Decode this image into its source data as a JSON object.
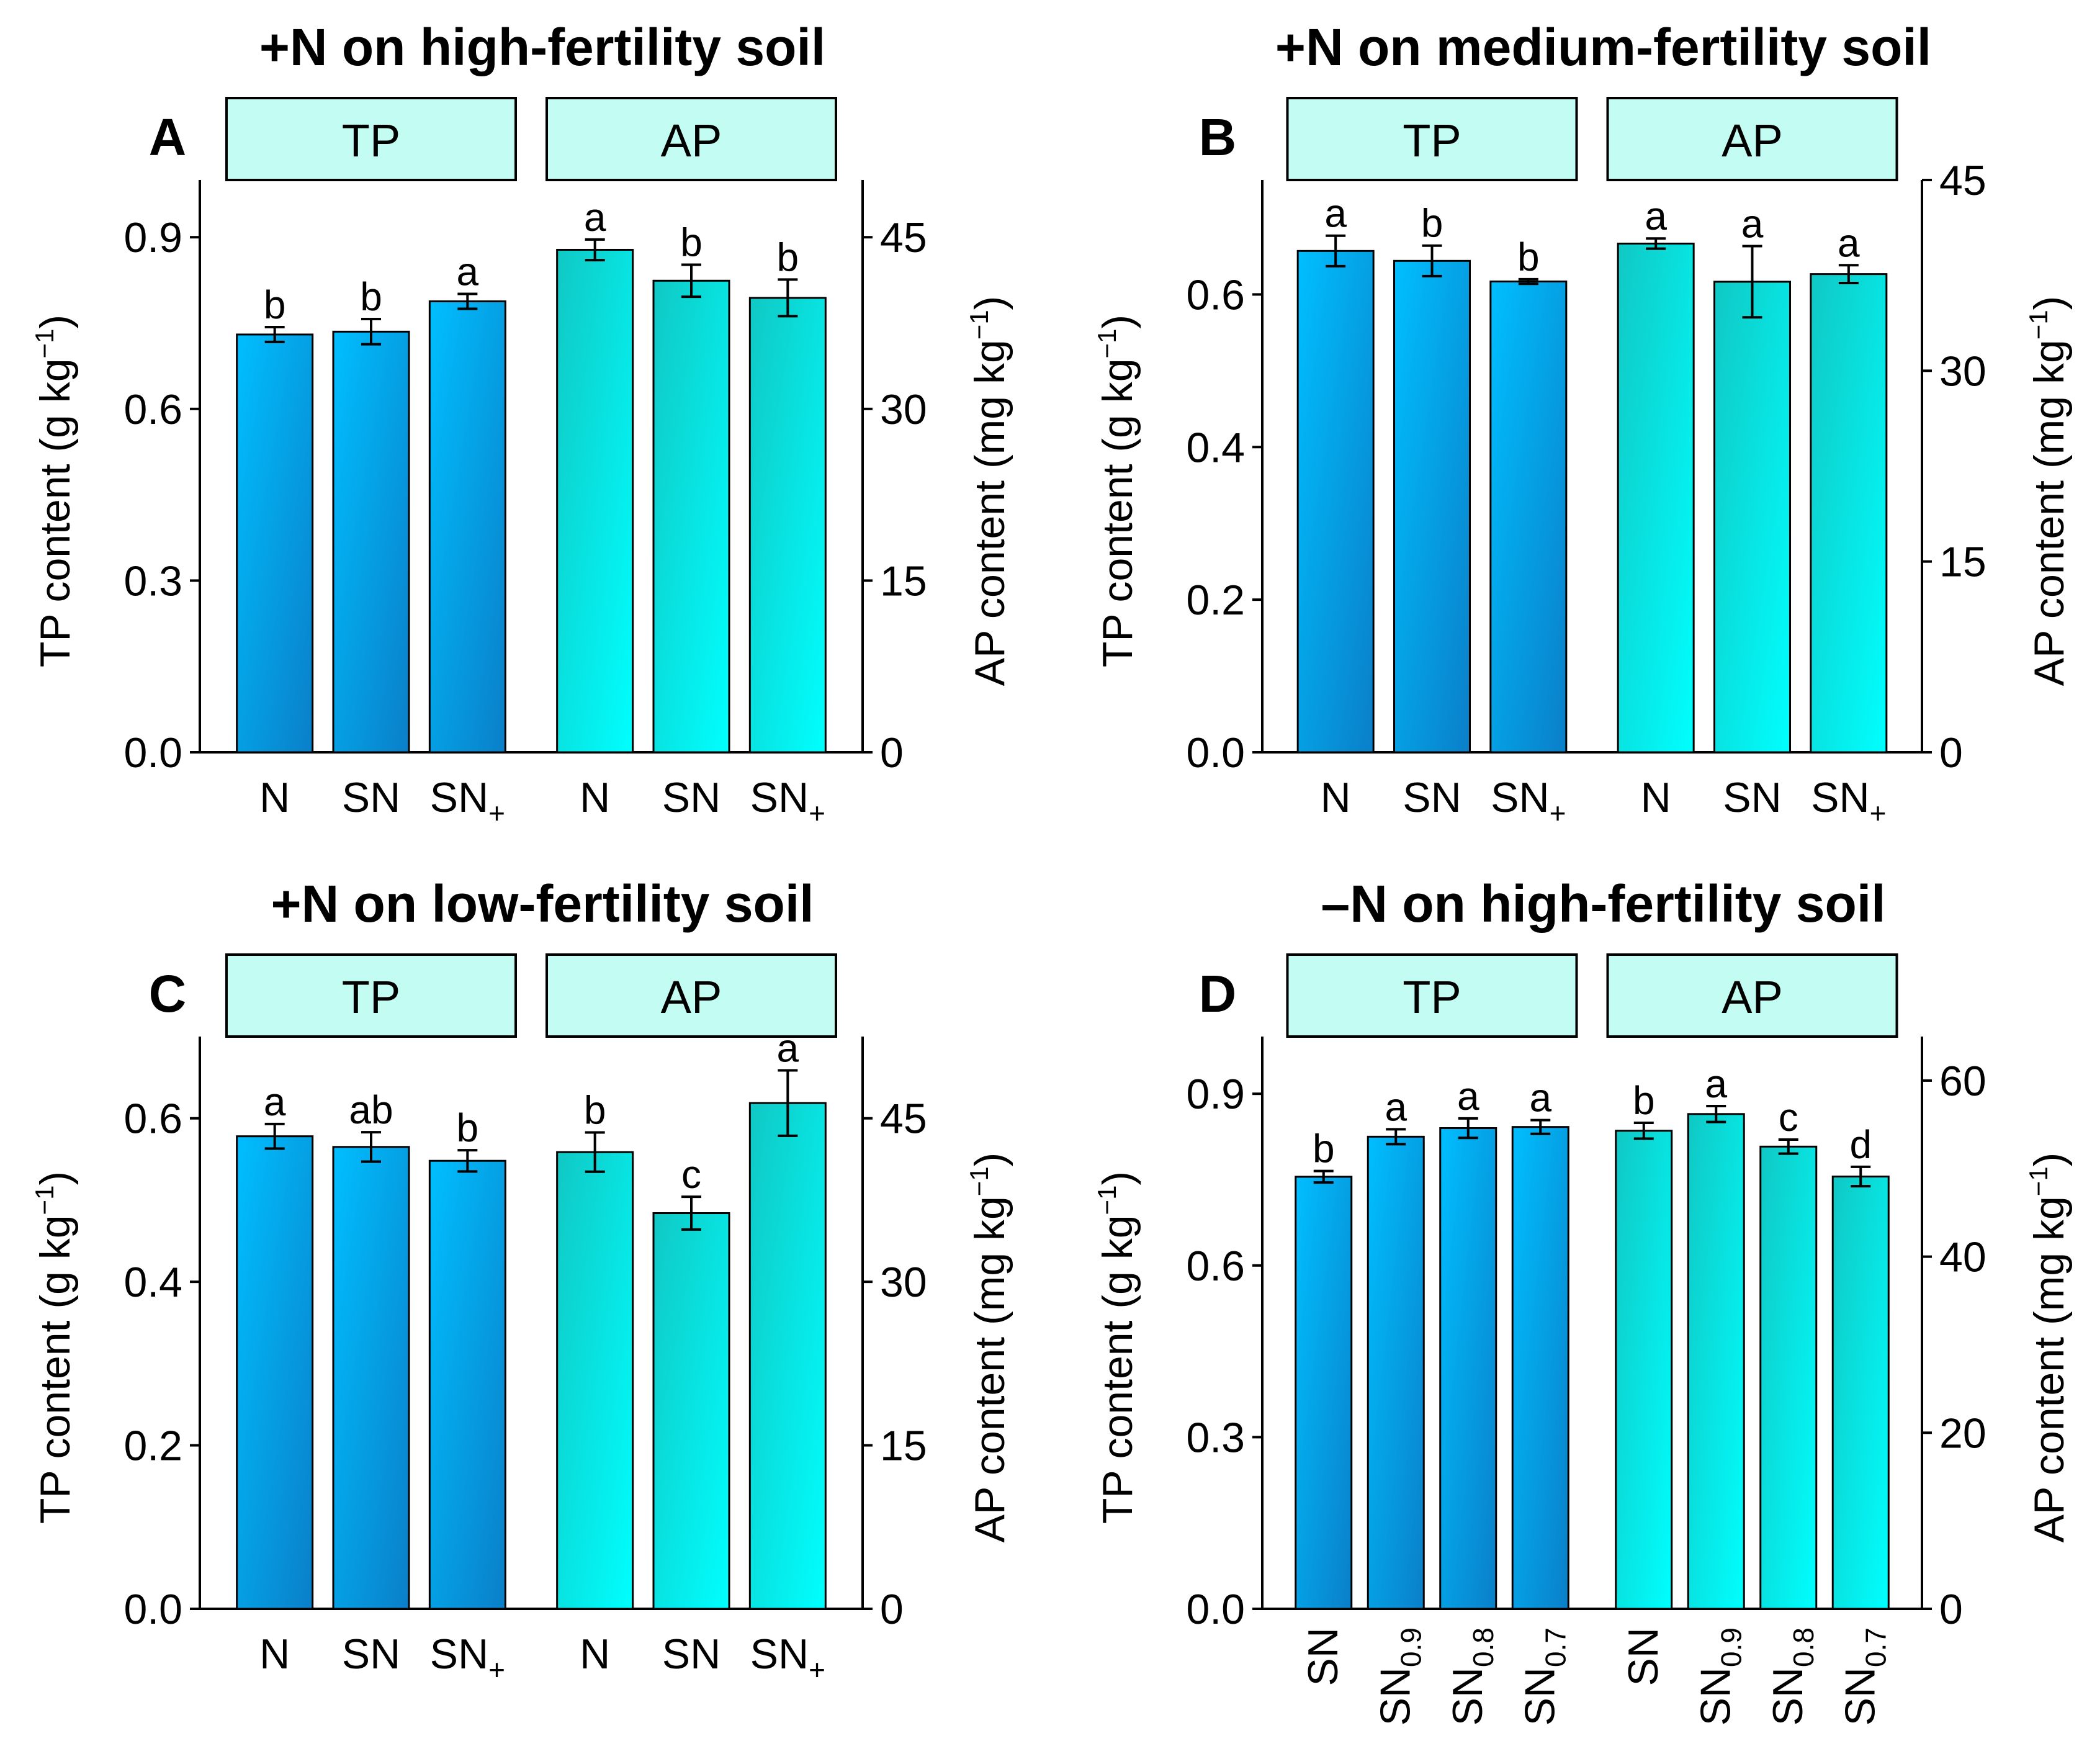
{
  "chart_data": [
    {
      "panel": "A",
      "title": "+N on high-fertility soil",
      "type": "bar",
      "strips": [
        "TP",
        "AP"
      ],
      "left_axis": {
        "label": "TP content (g kg",
        "label_sup": "−1",
        "label_close": ")",
        "ylim": [
          0,
          1.0
        ],
        "ticks": [
          "0.0",
          "0.3",
          "0.6",
          "0.9"
        ],
        "tick_values": [
          0,
          0.3,
          0.6,
          0.9
        ]
      },
      "right_axis": {
        "label": "AP content (mg kg",
        "label_sup": "−1",
        "label_close": ")",
        "ylim": [
          0,
          50
        ],
        "ticks": [
          "0",
          "15",
          "30",
          "45"
        ],
        "tick_values": [
          0,
          15,
          30,
          45
        ]
      },
      "groups": [
        {
          "name": "TP",
          "axis": "left",
          "color": "#0a8fd6",
          "bars": [
            {
              "category": "N",
              "sub": "",
              "value": 0.73,
              "err": 0.013,
              "sig": "b"
            },
            {
              "category": "SN",
              "sub": "",
              "value": 0.735,
              "err": 0.022,
              "sig": "b"
            },
            {
              "category": "SN",
              "sub": "+",
              "value": 0.788,
              "err": 0.013,
              "sig": "a"
            }
          ]
        },
        {
          "name": "AP",
          "axis": "right",
          "color": "#18d7d2",
          "bars": [
            {
              "category": "N",
              "sub": "",
              "value": 43.9,
              "err": 0.9,
              "sig": "a"
            },
            {
              "category": "SN",
              "sub": "",
              "value": 41.2,
              "err": 1.4,
              "sig": "b"
            },
            {
              "category": "SN",
              "sub": "+",
              "value": 39.7,
              "err": 1.6,
              "sig": "b"
            }
          ]
        }
      ],
      "tilted_labels": false
    },
    {
      "panel": "B",
      "title": "+N on medium-fertility soil",
      "type": "bar",
      "strips": [
        "TP",
        "AP"
      ],
      "left_axis": {
        "label": "TP content (g kg",
        "label_sup": "−1",
        "label_close": ")",
        "ylim": [
          0,
          0.75
        ],
        "ticks": [
          "0.0",
          "0.2",
          "0.4",
          "0.6"
        ],
        "tick_values": [
          0,
          0.2,
          0.4,
          0.6
        ]
      },
      "right_axis": {
        "label": "AP content (mg kg",
        "label_sup": "−1",
        "label_close": ")",
        "ylim": [
          0,
          45
        ],
        "ticks": [
          "0",
          "15",
          "30",
          "45"
        ],
        "tick_values": [
          0,
          15,
          30,
          45
        ]
      },
      "groups": [
        {
          "name": "TP",
          "axis": "left",
          "color": "#0a8fd6",
          "bars": [
            {
              "category": "N",
              "sub": "",
              "value": 0.657,
              "err": 0.02,
              "sig": "a"
            },
            {
              "category": "SN",
              "sub": "",
              "value": 0.644,
              "err": 0.02,
              "sig": "b"
            },
            {
              "category": "SN",
              "sub": "+",
              "value": 0.617,
              "err": 0.003,
              "sig": "b"
            }
          ]
        },
        {
          "name": "AP",
          "axis": "right",
          "color": "#18d7d2",
          "bars": [
            {
              "category": "N",
              "sub": "",
              "value": 40.0,
              "err": 0.4,
              "sig": "a"
            },
            {
              "category": "SN",
              "sub": "",
              "value": 37.0,
              "err": 2.8,
              "sig": "a"
            },
            {
              "category": "SN",
              "sub": "+",
              "value": 37.6,
              "err": 0.7,
              "sig": "a"
            }
          ]
        }
      ],
      "tilted_labels": false
    },
    {
      "panel": "C",
      "title": "+N on low-fertility soil",
      "type": "bar",
      "strips": [
        "TP",
        "AP"
      ],
      "left_axis": {
        "label": "TP content (g kg",
        "label_sup": "−1",
        "label_close": ")",
        "ylim": [
          0,
          0.7
        ],
        "ticks": [
          "0.0",
          "0.2",
          "0.4",
          "0.6"
        ],
        "tick_values": [
          0,
          0.2,
          0.4,
          0.6
        ]
      },
      "right_axis": {
        "label": "AP content (mg kg",
        "label_sup": "−1",
        "label_close": ")",
        "ylim": [
          0,
          52.5
        ],
        "ticks": [
          "0",
          "15",
          "30",
          "45"
        ],
        "tick_values": [
          0,
          15,
          30,
          45
        ]
      },
      "groups": [
        {
          "name": "TP",
          "axis": "left",
          "color": "#0a8fd6",
          "bars": [
            {
              "category": "N",
              "sub": "",
              "value": 0.578,
              "err": 0.015,
              "sig": "a"
            },
            {
              "category": "SN",
              "sub": "",
              "value": 0.565,
              "err": 0.018,
              "sig": "ab"
            },
            {
              "category": "SN",
              "sub": "+",
              "value": 0.548,
              "err": 0.013,
              "sig": "b"
            }
          ]
        },
        {
          "name": "AP",
          "axis": "right",
          "color": "#18d7d2",
          "bars": [
            {
              "category": "N",
              "sub": "",
              "value": 41.9,
              "err": 1.8,
              "sig": "b"
            },
            {
              "category": "SN",
              "sub": "",
              "value": 36.3,
              "err": 1.5,
              "sig": "c"
            },
            {
              "category": "SN",
              "sub": "+",
              "value": 46.4,
              "err": 3.0,
              "sig": "a"
            }
          ]
        }
      ],
      "tilted_labels": false
    },
    {
      "panel": "D",
      "title": "–N on high-fertility soil",
      "type": "bar",
      "strips": [
        "TP",
        "AP"
      ],
      "left_axis": {
        "label": "TP content (g kg",
        "label_sup": "−1",
        "label_close": ")",
        "ylim": [
          0,
          1.0
        ],
        "ticks": [
          "0.0",
          "0.3",
          "0.6",
          "0.9"
        ],
        "tick_values": [
          0,
          0.3,
          0.6,
          0.9
        ]
      },
      "right_axis": {
        "label": "AP content (mg kg",
        "label_sup": "−1",
        "label_close": ")",
        "ylim": [
          0,
          65
        ],
        "ticks": [
          "0",
          "20",
          "40",
          "60"
        ],
        "tick_values": [
          0,
          20,
          40,
          60
        ]
      },
      "groups": [
        {
          "name": "TP",
          "axis": "left",
          "color": "#0a8fd6",
          "bars": [
            {
              "category": "SN",
              "sub": "",
              "value": 0.755,
              "err": 0.01,
              "sig": "b"
            },
            {
              "category": "SN",
              "sub": "0.9",
              "value": 0.825,
              "err": 0.013,
              "sig": "a"
            },
            {
              "category": "SN",
              "sub": "0.8",
              "value": 0.84,
              "err": 0.017,
              "sig": "a"
            },
            {
              "category": "SN",
              "sub": "0.7",
              "value": 0.842,
              "err": 0.012,
              "sig": "a"
            }
          ]
        },
        {
          "name": "AP",
          "axis": "right",
          "color": "#18d7d2",
          "bars": [
            {
              "category": "SN",
              "sub": "",
              "value": 54.3,
              "err": 0.9,
              "sig": "b"
            },
            {
              "category": "SN",
              "sub": "0.9",
              "value": 56.2,
              "err": 0.9,
              "sig": "a"
            },
            {
              "category": "SN",
              "sub": "0.8",
              "value": 52.5,
              "err": 0.8,
              "sig": "c"
            },
            {
              "category": "SN",
              "sub": "0.7",
              "value": 49.1,
              "err": 1.1,
              "sig": "d"
            }
          ]
        }
      ],
      "tilted_labels": true
    }
  ]
}
